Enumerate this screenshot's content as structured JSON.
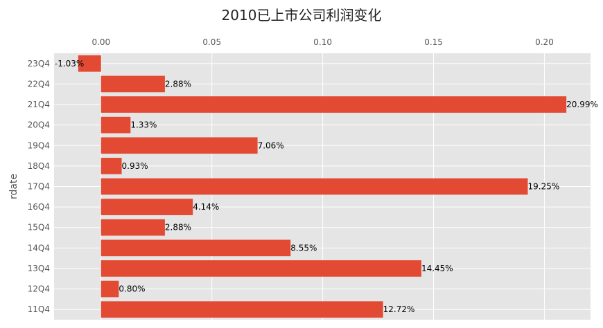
{
  "chart_data": {
    "type": "bar",
    "orientation": "horizontal",
    "title": "2010已上市公司利润变化",
    "xlabel": "",
    "ylabel": "rdate",
    "categories": [
      "23Q4",
      "22Q4",
      "21Q4",
      "20Q4",
      "19Q4",
      "18Q4",
      "17Q4",
      "16Q4",
      "15Q4",
      "14Q4",
      "13Q4",
      "12Q4",
      "11Q4"
    ],
    "values": [
      -0.0103,
      0.0288,
      0.2099,
      0.0133,
      0.0706,
      0.0093,
      0.1925,
      0.0414,
      0.0288,
      0.0855,
      0.1445,
      0.008,
      0.1272
    ],
    "data_labels": [
      "-1.03%",
      "2.88%",
      "20.99%",
      "1.33%",
      "7.06%",
      "0.93%",
      "19.25%",
      "4.14%",
      "2.88%",
      "8.55%",
      "14.45%",
      "0.80%",
      "12.72%"
    ],
    "xticks": [
      "0.00",
      "0.05",
      "0.10",
      "0.15",
      "0.20"
    ],
    "xtick_values": [
      0,
      0.05,
      0.1,
      0.15,
      0.2
    ],
    "xlim": [
      -0.0212,
      0.2208
    ],
    "xaxis_position": "top",
    "grid": true,
    "colors": {
      "bar": "#E24A33",
      "plot_bg": "#E5E5E5",
      "grid": "#FFFFFF"
    }
  }
}
